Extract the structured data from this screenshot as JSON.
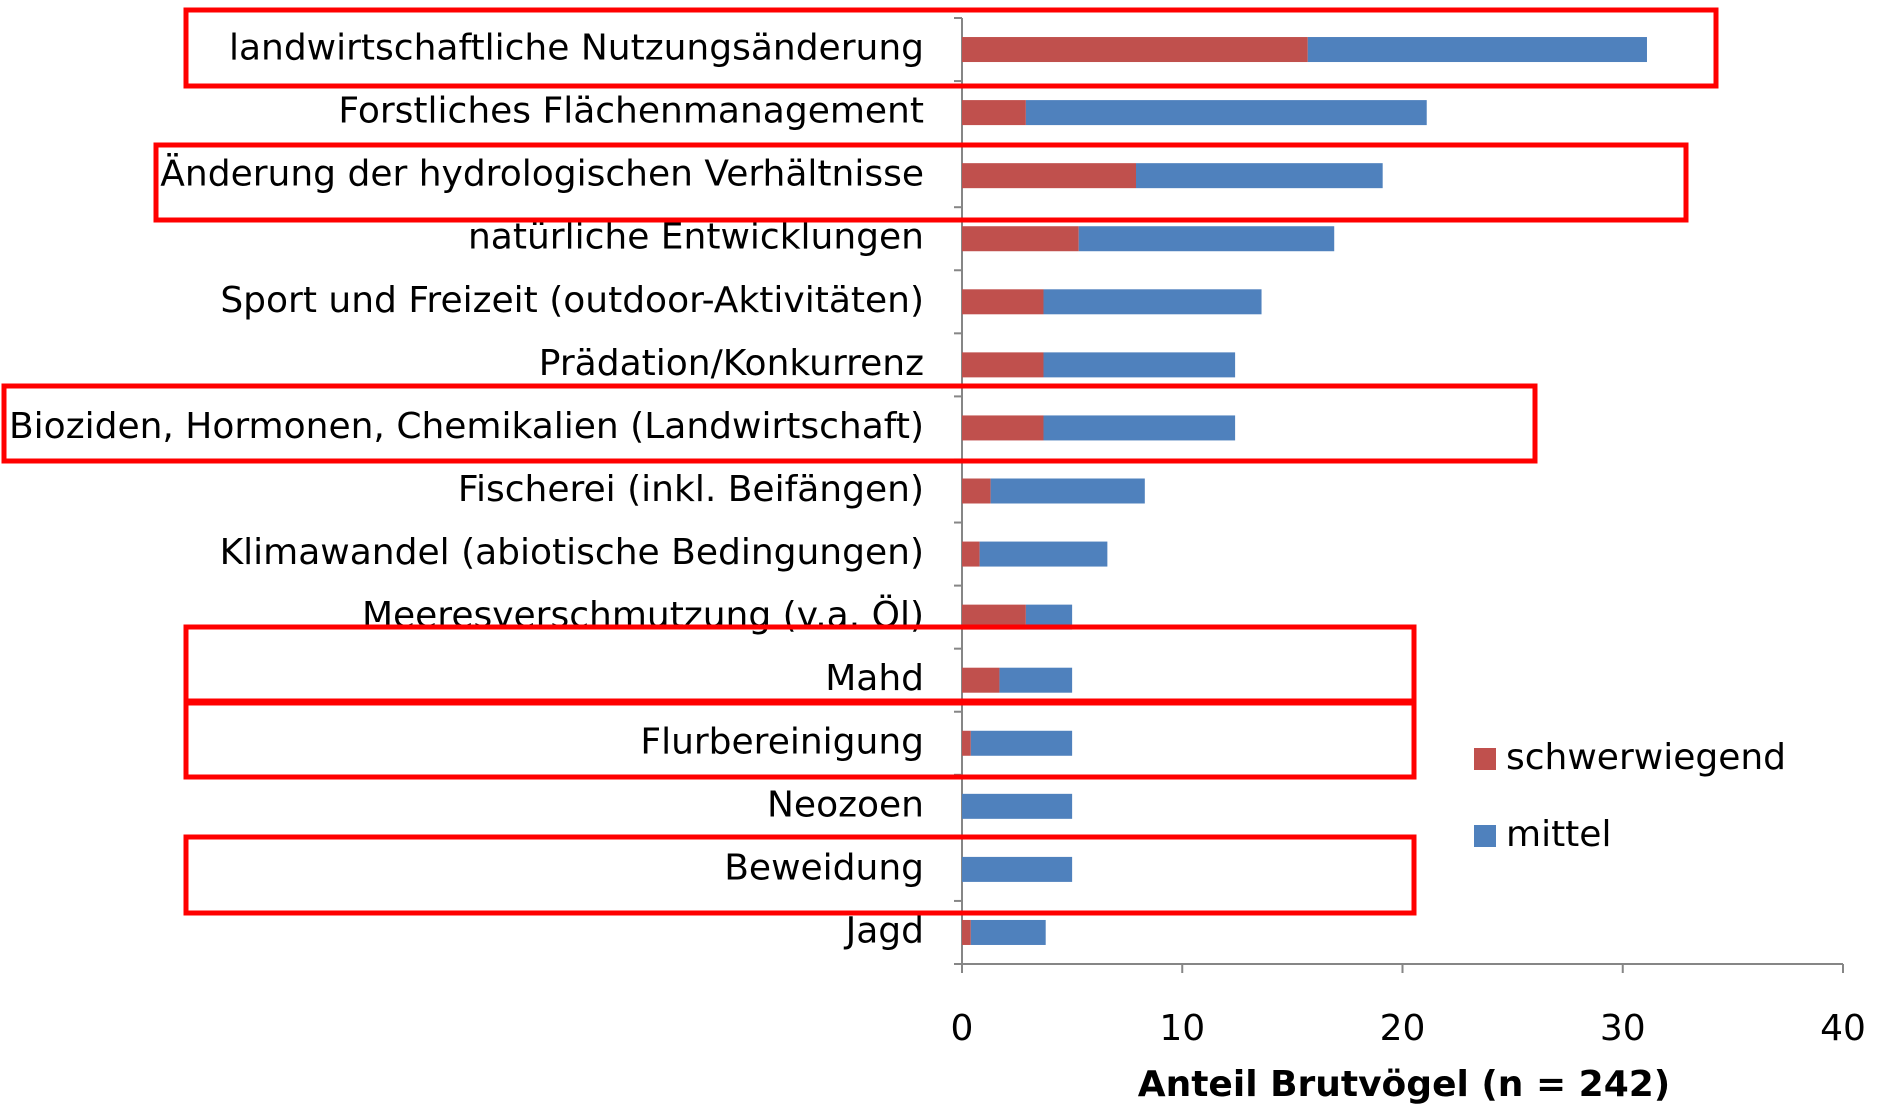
{
  "chart_data": {
    "type": "stacked-bar-horizontal",
    "x_label": "Anteil Brutvögel (n = 242)",
    "categories": [
      "landwirtschaftliche Nutzungsänderung",
      "Forstliches Flächenmanagement",
      "Änderung der hydrologischen Verhältnisse",
      "natürliche Entwicklungen",
      "Sport und Freizeit (outdoor-Aktivitäten)",
      "Prädation/Konkurrenz",
      "Bioziden, Hormonen, Chemikalien (Landwirtschaft)",
      "Fischerei (inkl. Beifängen)",
      "Klimawandel (abiotische Bedingungen)",
      "Meeresverschmutzung (v.a. Öl)",
      "Mahd",
      "Flurbereinigung",
      "Neozoen",
      "Beweidung",
      "Jagd"
    ],
    "series": [
      {
        "name": "schwerwiegend",
        "color": "#c0504d",
        "values": [
          15.7,
          2.9,
          7.9,
          5.3,
          3.7,
          3.7,
          3.7,
          1.3,
          0.8,
          2.9,
          1.7,
          0.4,
          0,
          0,
          0.4
        ]
      },
      {
        "name": "mittel",
        "color": "#4f81bd",
        "values": [
          15.4,
          18.2,
          11.2,
          11.6,
          9.9,
          8.7,
          8.7,
          7.0,
          5.8,
          2.1,
          3.3,
          4.6,
          5.0,
          5.0,
          3.4
        ]
      }
    ],
    "xlim": [
      0,
      40
    ],
    "xticks": [
      0,
      10,
      20,
      30,
      40
    ],
    "legend": "right"
  }
}
